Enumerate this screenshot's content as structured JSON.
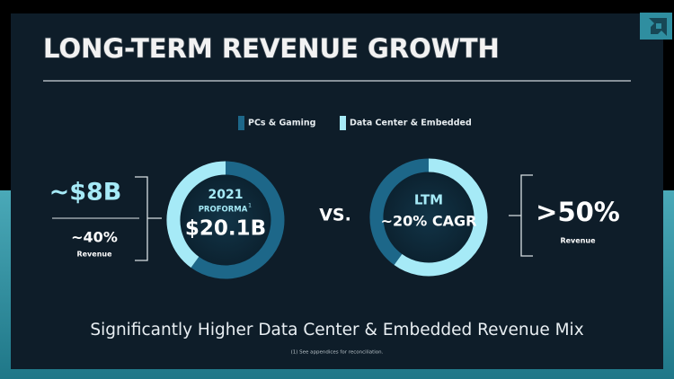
{
  "title": "LONG-TERM REVENUE GROWTH",
  "legend": [
    {
      "name": "PCs & Gaming",
      "color": "#1d6789"
    },
    {
      "name": "Data Center & Embedded",
      "color": "#a6eaf7"
    }
  ],
  "left_callout": {
    "value": "~$8B",
    "share": "~40%",
    "caption": "Revenue"
  },
  "donut_2021": {
    "label": "2021",
    "sublabel": "PROFORMA",
    "footnote_mark": "1",
    "total": "$20.1B",
    "values": [
      60,
      40
    ]
  },
  "vs": "VS.",
  "donut_ltm": {
    "label": "LTM",
    "cagr": "~20% CAGR",
    "values": [
      40,
      60
    ]
  },
  "right_callout": {
    "share": ">50%",
    "caption": "Revenue"
  },
  "headline": "Significantly Higher Data Center & Embedded Revenue Mix",
  "footnote": "(1) See appendices for reconciliation."
}
